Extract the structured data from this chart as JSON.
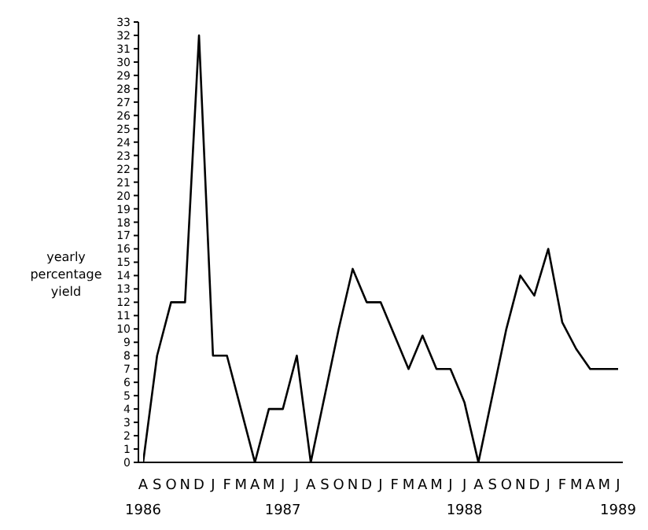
{
  "chart_data": {
    "type": "line",
    "ylabel": "yearly percentage yield",
    "categories": [
      "A",
      "S",
      "O",
      "N",
      "D",
      "J",
      "F",
      "M",
      "A",
      "M",
      "J",
      "J",
      "A",
      "S",
      "O",
      "N",
      "D",
      "J",
      "F",
      "M",
      "A",
      "M",
      "J",
      "J",
      "A",
      "S",
      "O",
      "N",
      "D",
      "J",
      "F",
      "M",
      "A",
      "M",
      "J"
    ],
    "series": [
      {
        "color": "#000000",
        "values": [
          0,
          8,
          12,
          12,
          32,
          8,
          8,
          4,
          0,
          4,
          4,
          8,
          0,
          5,
          10,
          14.5,
          12,
          12,
          9.5,
          7,
          9.5,
          7,
          7,
          4.5,
          0,
          5,
          10,
          14,
          12.5,
          16,
          10.5,
          8.5,
          7,
          7,
          7
        ]
      }
    ],
    "ylim": [
      0,
      33
    ],
    "yticks": [
      0,
      1,
      2,
      3,
      4,
      5,
      6,
      7,
      8,
      9,
      10,
      11,
      12,
      13,
      14,
      15,
      16,
      17,
      18,
      19,
      20,
      21,
      22,
      23,
      24,
      25,
      26,
      27,
      28,
      29,
      30,
      31,
      32,
      33
    ],
    "annotations": [
      "1986",
      "1987",
      "1988",
      "1989"
    ],
    "grid": false,
    "legend": false,
    "marker": "none",
    "line_style": "solid"
  }
}
